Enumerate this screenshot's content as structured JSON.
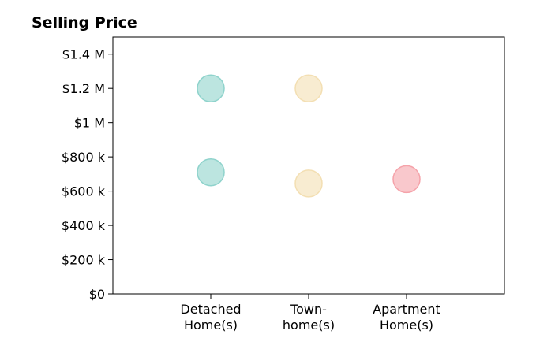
{
  "chart_data": {
    "type": "scatter",
    "title": "Selling Price",
    "xlabel": "",
    "ylabel": "",
    "categories": [
      [
        "Detached",
        "Home(s)"
      ],
      [
        "Town-",
        "home(s)"
      ],
      [
        "Apartment",
        "Home(s)"
      ]
    ],
    "x_range": [
      0,
      4
    ],
    "ylim": [
      0,
      1500000
    ],
    "yticks": [
      0,
      200000,
      400000,
      600000,
      800000,
      1000000,
      1200000,
      1400000
    ],
    "ytick_labels": [
      "$0",
      "$200 k",
      "$400 k",
      "$600 k",
      "$800 k",
      "$1 M",
      "$1.2 M",
      "$1.4 M"
    ],
    "grid": false,
    "legend": "none",
    "points": [
      {
        "category": 0,
        "value": 1200000,
        "color": "#8fd3cc"
      },
      {
        "category": 0,
        "value": 710000,
        "color": "#8fd3cc"
      },
      {
        "category": 1,
        "value": 1200000,
        "color": "#f3dfb3"
      },
      {
        "category": 1,
        "value": 645000,
        "color": "#f3dfb3"
      },
      {
        "category": 2,
        "value": 670000,
        "color": "#f5a3aa"
      }
    ]
  }
}
